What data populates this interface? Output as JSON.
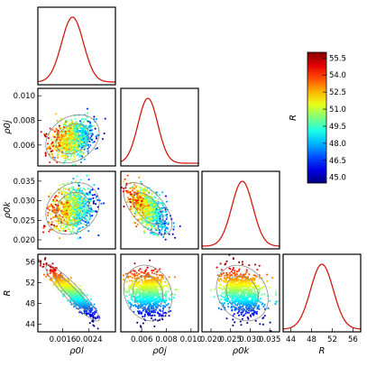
{
  "chart_data": {
    "type": "scatter",
    "subtype": "corner-plot",
    "title": "",
    "parameters": [
      {
        "id": "p1",
        "label": "ρ0l",
        "ticks": [
          0.0016,
          0.0024
        ],
        "tick_labels": [
          "0.0016",
          "0.0024"
        ],
        "range": [
          0.00085,
          0.0032
        ],
        "mean": 0.0019,
        "sd": 0.00033
      },
      {
        "id": "p2",
        "label": "ρ0j",
        "ticks": [
          0.006,
          0.008,
          0.01
        ],
        "tick_labels": [
          "0.006",
          "0.008",
          "0.010"
        ],
        "range": [
          0.0043,
          0.0106
        ],
        "mean": 0.0065,
        "sd": 0.0008
      },
      {
        "id": "p3",
        "label": "ρ0k",
        "ticks": [
          0.02,
          0.025,
          0.03,
          0.035
        ],
        "tick_labels": [
          "0.020",
          "0.025",
          "0.030",
          "0.035"
        ],
        "range": [
          0.0177,
          0.0375
        ],
        "mean": 0.028,
        "sd": 0.0027
      },
      {
        "id": "R",
        "label": "R",
        "ticks": [
          44,
          48,
          52,
          56
        ],
        "tick_labels": [
          "44",
          "48",
          "52",
          "56"
        ],
        "range": [
          42.5,
          57.5
        ],
        "mean": 50.0,
        "sd": 2.2
      }
    ],
    "pairs": [
      {
        "row": "p2",
        "col": "p1",
        "correlation": 0.25
      },
      {
        "row": "p3",
        "col": "p1",
        "correlation": 0.2
      },
      {
        "row": "p3",
        "col": "p2",
        "correlation": -0.6
      },
      {
        "row": "R",
        "col": "p1",
        "correlation": -0.92
      },
      {
        "row": "R",
        "col": "p2",
        "correlation": -0.15
      },
      {
        "row": "R",
        "col": "p3",
        "correlation": -0.2
      }
    ],
    "colorbar": {
      "label": "R",
      "range": [
        44.5,
        56.0
      ],
      "ticks": [
        "45.0",
        "46.5",
        "48.0",
        "49.5",
        "51.0",
        "52.5",
        "54.0",
        "55.5"
      ],
      "colormap": "jet"
    },
    "pdf_color": "#d11a14",
    "contour_color": "#8a8a8a",
    "grid": false,
    "points_per_panel": 900
  }
}
